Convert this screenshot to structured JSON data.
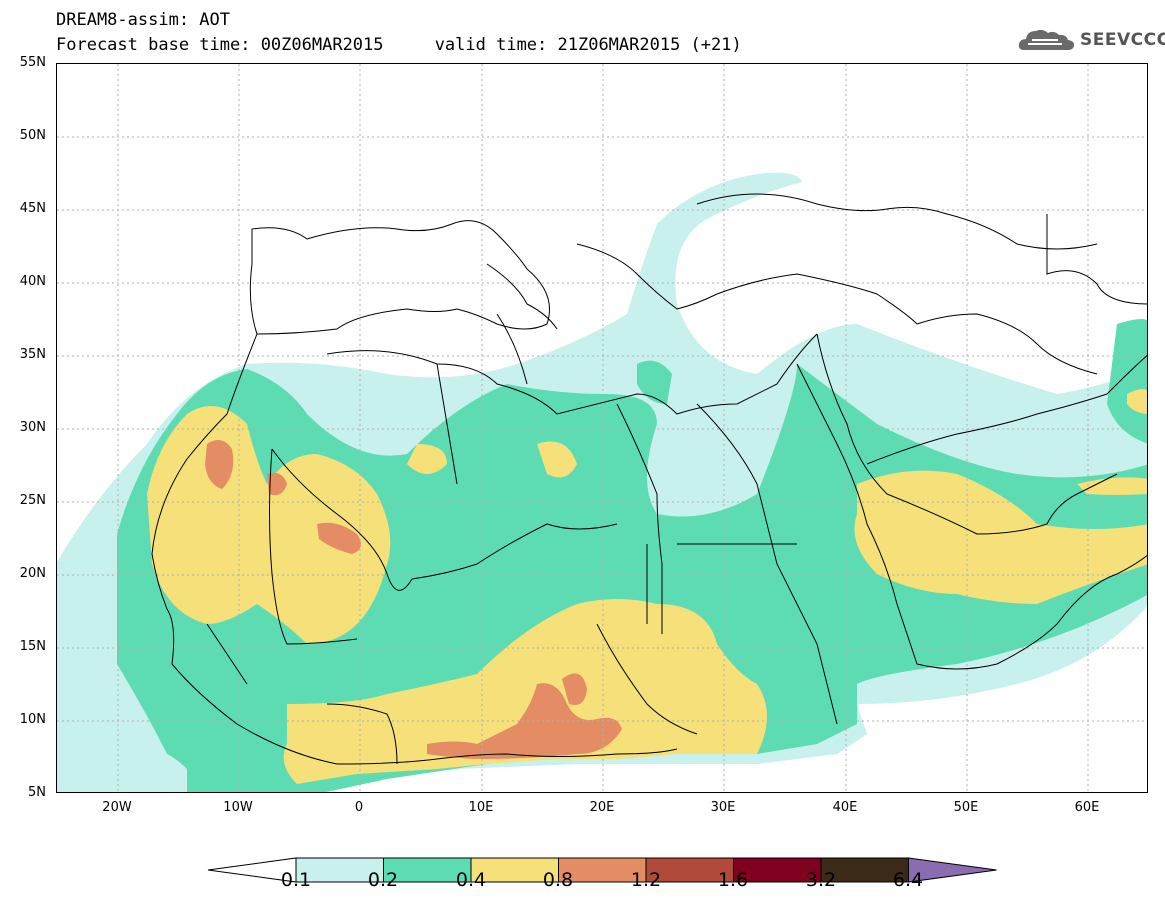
{
  "header": {
    "line1": "DREAM8-assim: AOT",
    "line2": "Forecast base time: 00Z06MAR2015     valid time: 21Z06MAR2015 (+21)"
  },
  "logo": {
    "text": "SEEVCCC",
    "icon": "cloud-icon"
  },
  "map": {
    "lat_labels": [
      "55N",
      "50N",
      "45N",
      "40N",
      "35N",
      "30N",
      "25N",
      "20N",
      "15N",
      "10N",
      "5N"
    ],
    "lon_labels": [
      "20W",
      "10W",
      "0",
      "10E",
      "20E",
      "30E",
      "40E",
      "50E",
      "60E"
    ],
    "lon_range": [
      -25,
      65
    ],
    "lat_range": [
      5,
      55
    ],
    "grid": true
  },
  "legend": {
    "levels": [
      "0.1",
      "0.2",
      "0.4",
      "0.8",
      "1.2",
      "1.6",
      "3.2",
      "6.4"
    ],
    "colors": [
      "#ffffff",
      "#c8f0ec",
      "#5ddcb4",
      "#f5e07a",
      "#e48c64",
      "#b04a3a",
      "#800020",
      "#3c2a18",
      "#8c6cb0"
    ]
  }
}
